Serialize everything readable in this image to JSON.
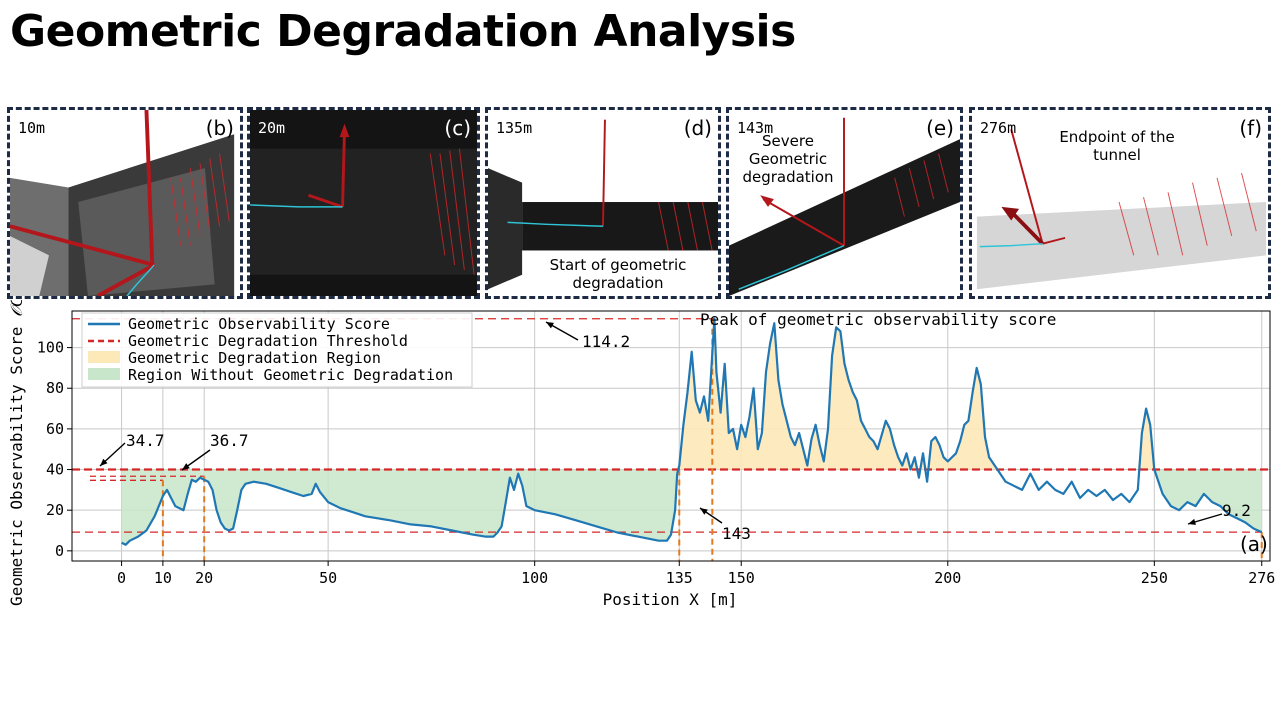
{
  "title": "Geometric Degradation Analysis",
  "panels": [
    {
      "distance": "10m",
      "letter": "(b)",
      "note": ""
    },
    {
      "distance": "20m",
      "letter": "(c)",
      "note": ""
    },
    {
      "distance": "135m",
      "letter": "(d)",
      "note": "Start of geometric degradation"
    },
    {
      "distance": "143m",
      "letter": "(e)",
      "note": "Severe Geometric degradation"
    },
    {
      "distance": "276m",
      "letter": "(f)",
      "note": "Endpoint of the tunnel"
    }
  ],
  "chart_data": {
    "type": "line",
    "panel_letter": "(a)",
    "xlabel": "Position X [m]",
    "ylabel": "Geometric Observability Score",
    "ylabel_symbol": "𝒪G",
    "xlim": [
      -12,
      278
    ],
    "ylim": [
      -5,
      118
    ],
    "x_ticks": [
      0,
      10,
      20,
      50,
      100,
      135,
      150,
      200,
      250,
      276
    ],
    "y_ticks": [
      0,
      20,
      40,
      60,
      80,
      100
    ],
    "grid": true,
    "legend_position": "top-left",
    "threshold": 40,
    "min_line": 9.2,
    "legend": [
      {
        "label": "Geometric Observability Score",
        "color": "#1f77b4",
        "style": "line"
      },
      {
        "label": "Geometric Degradation Threshold",
        "color": "#d62728",
        "style": "dashed"
      },
      {
        "label": "Geometric Degradation Region",
        "color": "#fde8b8",
        "style": "patch"
      },
      {
        "label": "Region Without Geometric Degradation",
        "color": "#c8e6c9",
        "style": "patch"
      }
    ],
    "series": [
      {
        "values": [
          [
            0,
            4
          ],
          [
            1,
            3
          ],
          [
            2,
            5
          ],
          [
            4,
            7
          ],
          [
            6,
            10
          ],
          [
            8,
            17
          ],
          [
            9,
            22
          ],
          [
            10,
            27
          ],
          [
            11,
            30
          ],
          [
            12,
            26
          ],
          [
            13,
            22
          ],
          [
            14,
            21
          ],
          [
            15,
            20
          ],
          [
            16,
            28
          ],
          [
            17,
            35
          ],
          [
            18,
            34
          ],
          [
            19,
            36
          ],
          [
            20,
            35
          ],
          [
            21,
            34
          ],
          [
            22,
            30
          ],
          [
            23,
            20
          ],
          [
            24,
            14
          ],
          [
            25,
            11
          ],
          [
            26,
            10
          ],
          [
            27,
            11
          ],
          [
            28,
            20
          ],
          [
            29,
            30
          ],
          [
            30,
            33
          ],
          [
            32,
            34
          ],
          [
            35,
            33
          ],
          [
            38,
            31
          ],
          [
            41,
            29
          ],
          [
            44,
            27
          ],
          [
            46,
            28
          ],
          [
            47,
            33
          ],
          [
            48,
            29
          ],
          [
            50,
            24
          ],
          [
            53,
            21
          ],
          [
            56,
            19
          ],
          [
            59,
            17
          ],
          [
            62,
            16
          ],
          [
            65,
            15
          ],
          [
            70,
            13
          ],
          [
            75,
            12
          ],
          [
            80,
            10
          ],
          [
            85,
            8
          ],
          [
            88,
            7
          ],
          [
            90,
            7
          ],
          [
            91,
            9
          ],
          [
            92,
            12
          ],
          [
            93,
            24
          ],
          [
            94,
            36
          ],
          [
            95,
            30
          ],
          [
            96,
            38
          ],
          [
            97,
            32
          ],
          [
            98,
            22
          ],
          [
            100,
            20
          ],
          [
            105,
            18
          ],
          [
            110,
            15
          ],
          [
            115,
            12
          ],
          [
            120,
            9
          ],
          [
            125,
            7
          ],
          [
            130,
            5
          ],
          [
            132,
            5
          ],
          [
            133,
            8
          ],
          [
            134,
            20
          ],
          [
            134.5,
            38
          ],
          [
            135,
            42
          ],
          [
            136,
            62
          ],
          [
            137,
            78
          ],
          [
            138,
            98
          ],
          [
            139,
            74
          ],
          [
            140,
            68
          ],
          [
            141,
            76
          ],
          [
            142,
            64
          ],
          [
            143,
            97
          ],
          [
            143.5,
            114.2
          ],
          [
            144,
            88
          ],
          [
            145,
            68
          ],
          [
            146,
            92
          ],
          [
            147,
            58
          ],
          [
            148,
            60
          ],
          [
            149,
            50
          ],
          [
            150,
            62
          ],
          [
            151,
            56
          ],
          [
            152,
            66
          ],
          [
            153,
            80
          ],
          [
            154,
            50
          ],
          [
            155,
            58
          ],
          [
            156,
            88
          ],
          [
            157,
            102
          ],
          [
            158,
            112
          ],
          [
            159,
            84
          ],
          [
            160,
            72
          ],
          [
            161,
            64
          ],
          [
            162,
            56
          ],
          [
            163,
            52
          ],
          [
            164,
            58
          ],
          [
            165,
            50
          ],
          [
            166,
            42
          ],
          [
            167,
            55
          ],
          [
            168,
            62
          ],
          [
            169,
            52
          ],
          [
            170,
            44
          ],
          [
            171,
            60
          ],
          [
            172,
            96
          ],
          [
            173,
            110
          ],
          [
            174,
            108
          ],
          [
            175,
            92
          ],
          [
            176,
            84
          ],
          [
            177,
            78
          ],
          [
            178,
            74
          ],
          [
            179,
            64
          ],
          [
            180,
            60
          ],
          [
            181,
            56
          ],
          [
            182,
            54
          ],
          [
            183,
            50
          ],
          [
            184,
            57
          ],
          [
            185,
            64
          ],
          [
            186,
            60
          ],
          [
            187,
            52
          ],
          [
            188,
            46
          ],
          [
            189,
            42
          ],
          [
            190,
            48
          ],
          [
            191,
            40
          ],
          [
            192,
            46
          ],
          [
            193,
            36
          ],
          [
            194,
            48
          ],
          [
            195,
            34
          ],
          [
            196,
            54
          ],
          [
            197,
            56
          ],
          [
            198,
            52
          ],
          [
            199,
            46
          ],
          [
            200,
            44
          ],
          [
            202,
            48
          ],
          [
            203,
            54
          ],
          [
            204,
            62
          ],
          [
            205,
            64
          ],
          [
            206,
            78
          ],
          [
            207,
            90
          ],
          [
            208,
            82
          ],
          [
            209,
            56
          ],
          [
            210,
            46
          ],
          [
            212,
            40
          ],
          [
            214,
            34
          ],
          [
            216,
            32
          ],
          [
            218,
            30
          ],
          [
            220,
            38
          ],
          [
            222,
            30
          ],
          [
            224,
            34
          ],
          [
            226,
            30
          ],
          [
            228,
            28
          ],
          [
            230,
            34
          ],
          [
            232,
            26
          ],
          [
            234,
            30
          ],
          [
            236,
            27
          ],
          [
            238,
            30
          ],
          [
            240,
            25
          ],
          [
            242,
            28
          ],
          [
            244,
            24
          ],
          [
            246,
            30
          ],
          [
            247,
            58
          ],
          [
            248,
            70
          ],
          [
            249,
            62
          ],
          [
            250,
            40
          ],
          [
            252,
            28
          ],
          [
            254,
            22
          ],
          [
            256,
            20
          ],
          [
            258,
            24
          ],
          [
            260,
            22
          ],
          [
            262,
            28
          ],
          [
            264,
            24
          ],
          [
            266,
            22
          ],
          [
            268,
            18
          ],
          [
            270,
            16
          ],
          [
            272,
            14
          ],
          [
            274,
            11
          ],
          [
            276,
            9.2
          ]
        ]
      }
    ],
    "annotations": [
      {
        "text": "34.7",
        "x": 0,
        "y": 34.7
      },
      {
        "text": "36.7",
        "x": 17,
        "y": 36.7
      },
      {
        "text": "114.2",
        "x": 143.5,
        "y": 114.2
      },
      {
        "text": "Peak of geometric observability score",
        "x": 143.5,
        "y": 114.2
      },
      {
        "text": "143",
        "x": 143,
        "y": 40
      },
      {
        "text": "9.2",
        "x": 276,
        "y": 9.2
      }
    ],
    "marker_lines_x": [
      10,
      20,
      135,
      143,
      276
    ]
  }
}
